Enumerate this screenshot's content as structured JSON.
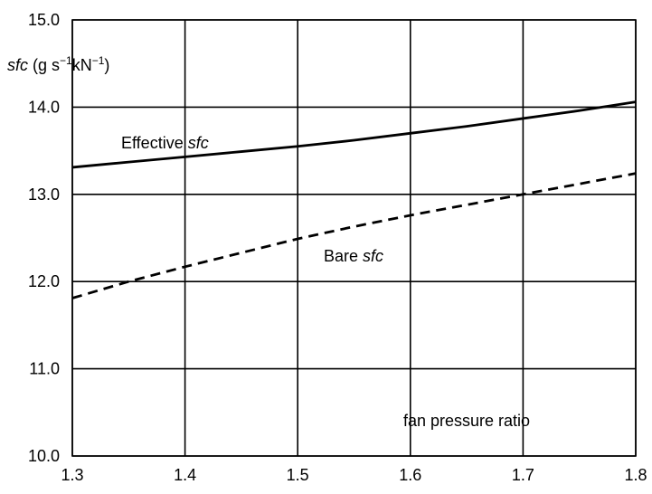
{
  "chart_data": {
    "type": "line",
    "title": "",
    "xlabel": "fan pressure ratio",
    "ylabel": {
      "var": "sfc",
      "unit_prefix": " (g s",
      "sup1": "−1",
      "unit_mid": "kN",
      "sup2": "−1",
      "unit_suffix": ")"
    },
    "xlim": [
      1.3,
      1.8
    ],
    "ylim": [
      10.0,
      15.0
    ],
    "x_ticks": [
      "1.3",
      "1.4",
      "1.5",
      "1.6",
      "1.7",
      "1.8"
    ],
    "y_ticks": [
      "10.0",
      "11.0",
      "12.0",
      "13.0",
      "14.0",
      "15.0"
    ],
    "grid": true,
    "series": [
      {
        "label_prefix": "Effective ",
        "label_var": "sfc",
        "style": "solid",
        "x": [
          1.3,
          1.35,
          1.4,
          1.45,
          1.5,
          1.55,
          1.6,
          1.65,
          1.7,
          1.75,
          1.8
        ],
        "y": [
          13.31,
          13.37,
          13.43,
          13.49,
          13.55,
          13.62,
          13.7,
          13.78,
          13.87,
          13.96,
          14.06
        ]
      },
      {
        "label_prefix": "Bare ",
        "label_var": "sfc",
        "style": "dashed",
        "x": [
          1.3,
          1.35,
          1.4,
          1.45,
          1.5,
          1.55,
          1.6,
          1.65,
          1.7,
          1.75,
          1.8
        ],
        "y": [
          11.81,
          12.0,
          12.17,
          12.33,
          12.49,
          12.63,
          12.76,
          12.88,
          13.0,
          13.12,
          13.24
        ]
      }
    ]
  }
}
